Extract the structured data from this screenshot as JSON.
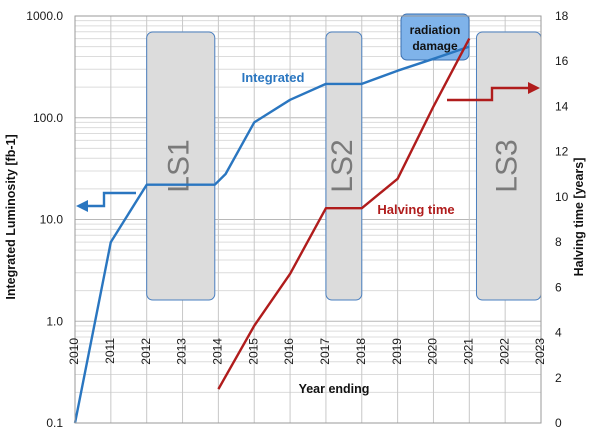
{
  "chart_data": {
    "type": "line",
    "xlabel": "Year ending",
    "ylabel_left": "Integrated Luminosity [fb-1]",
    "ylabel_right": "Halving time [years]",
    "x_ticks": [
      "2010",
      "2011",
      "2012",
      "2013",
      "2014",
      "2015",
      "2016",
      "2017",
      "2018",
      "2019",
      "2020",
      "2021",
      "2022",
      "2023"
    ],
    "y_left_ticks": [
      "0.1",
      "1.0",
      "10.0",
      "100.0",
      "1000.0"
    ],
    "y_right_ticks": [
      "0",
      "2",
      "4",
      "6",
      "8",
      "10",
      "12",
      "14",
      "16",
      "18"
    ],
    "y_left_scale": "log",
    "y_left_lim": [
      0.1,
      1000
    ],
    "y_right_lim": [
      0,
      18
    ],
    "x_lim": [
      2010,
      2023
    ],
    "grid": true,
    "shutdowns": [
      {
        "label": "LS1",
        "start": 2012,
        "end": 2013.9
      },
      {
        "label": "LS2",
        "start": 2017,
        "end": 2018
      },
      {
        "label": "LS3",
        "start": 2021.2,
        "end": 2023
      }
    ],
    "series": [
      {
        "name": "Integrated",
        "axis": "left",
        "color": "#2a76c0",
        "x": [
          2010,
          2011,
          2012,
          2013,
          2013.9,
          2014.2,
          2015,
          2016,
          2017,
          2018,
          2019,
          2020,
          2021
        ],
        "y": [
          0.1,
          6,
          22,
          22,
          22,
          28,
          90,
          150,
          215,
          215,
          290,
          380,
          500
        ]
      },
      {
        "name": "Halving time",
        "axis": "right",
        "color": "#b01c1c",
        "x": [
          2014,
          2015,
          2016,
          2017,
          2018,
          2019,
          2020,
          2021
        ],
        "y": [
          1.5,
          4.3,
          6.6,
          9.5,
          9.5,
          10.8,
          14,
          17
        ]
      }
    ],
    "annotation": "radiation damage",
    "annotation_color": "#7fb3ea"
  }
}
